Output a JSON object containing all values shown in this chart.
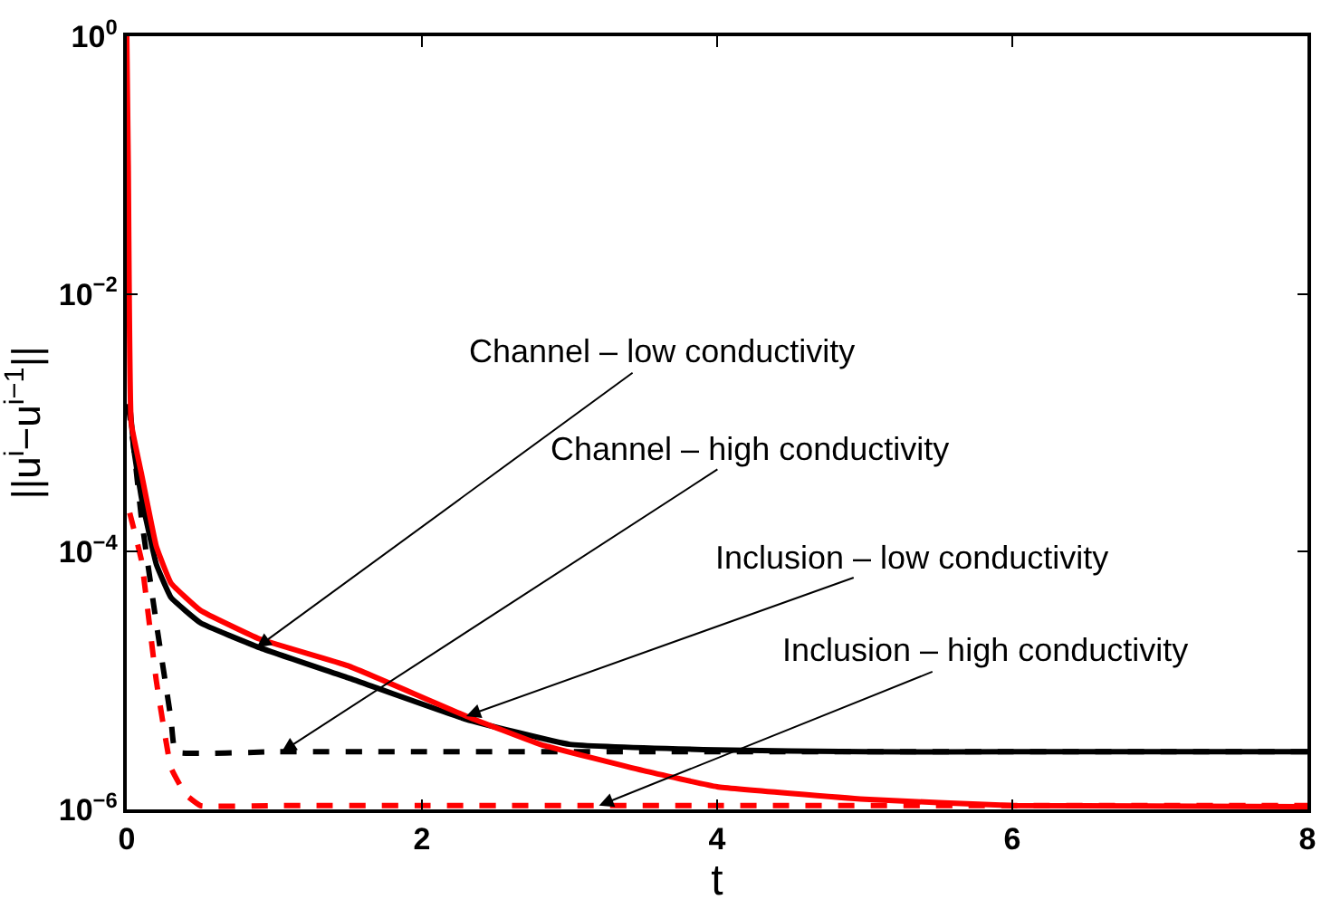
{
  "chart_data": {
    "type": "line",
    "xlabel": "t",
    "ylabel": "||u$^{i}$−u$^{i−1}$||",
    "log": "y",
    "marker": "none",
    "xlim": [
      0,
      8
    ],
    "xticks": [
      0,
      2,
      4,
      6,
      8
    ],
    "ylim": [
      1e-06,
      1
    ],
    "yticks": [
      {
        "value": 1e-06,
        "label": "10$^{−6}$"
      },
      {
        "value": 0.0001,
        "label": "10$^{−4}$"
      },
      {
        "value": 0.01,
        "label": "10$^{−2}$"
      },
      {
        "value": 1,
        "label": "10$^{0}$"
      }
    ],
    "series": [
      {
        "color": "#000000",
        "line_style": "solid",
        "x": [
          0.02,
          0.05,
          0.1,
          0.2,
          0.3,
          0.5,
          0.9,
          1.5,
          2.3,
          3,
          4,
          5,
          6,
          8
        ],
        "values": [
          0.0014,
          0.0006,
          0.00026,
          8e-05,
          4.4e-05,
          2.8e-05,
          1.8e-05,
          1.05e-05,
          5e-06,
          3.2e-06,
          2.9e-06,
          2.8e-06,
          2.8e-06,
          2.8e-06
        ]
      },
      {
        "color": "#000000",
        "line_style": "dashed",
        "x": [
          0.01,
          0.05,
          0.1,
          0.2,
          0.3,
          0.33,
          1,
          2,
          4,
          6,
          8
        ],
        "values": [
          0.0014,
          0.0006,
          0.00018,
          2.8e-05,
          5e-06,
          2.8e-06,
          2.8e-06,
          2.8e-06,
          2.8e-06,
          2.8e-06,
          2.8e-06
        ]
      },
      {
        "color": "#ff0000",
        "line_style": "solid",
        "x": [
          0,
          0.01,
          0.03,
          0.1,
          0.2,
          0.3,
          0.5,
          0.9,
          1.5,
          2.3,
          2.8,
          3.5,
          4,
          5,
          6,
          8
        ],
        "values": [
          1,
          0.1,
          0.001,
          0.0004,
          0.00011,
          5.7e-05,
          3.5e-05,
          2.1e-05,
          1.3e-05,
          5.3e-06,
          3.2e-06,
          2e-06,
          1.5e-06,
          1.2e-06,
          1.07e-06,
          1.05e-06
        ]
      },
      {
        "color": "#ff0000",
        "line_style": "dashed",
        "x": [
          0.02,
          0.1,
          0.2,
          0.3,
          0.4,
          0.5,
          1,
          2,
          4,
          6,
          8
        ],
        "values": [
          0.0002,
          8.5e-05,
          1e-05,
          2.1e-06,
          1.3e-06,
          1.07e-06,
          1.07e-06,
          1.07e-06,
          1.07e-06,
          1.07e-06,
          1.07e-06
        ]
      }
    ],
    "annotations": [
      {
        "text": "Channel – low conductivity",
        "x": 0.88,
        "y": 1.8e-05
      },
      {
        "text": "Channel – high conductivity",
        "x": 1.05,
        "y": 2.8e-06
      },
      {
        "text": "Inclusion – low conductivity",
        "x": 2.3,
        "y": 5.3e-06
      },
      {
        "text": "Inclusion – high conductivity",
        "x": 3.2,
        "y": 1.07e-06
      }
    ]
  }
}
